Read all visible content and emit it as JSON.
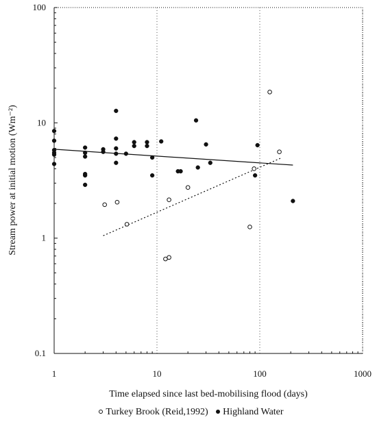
{
  "chart_data": {
    "type": "scatter",
    "x_scale": "log",
    "y_scale": "log",
    "xlim": [
      1,
      1000
    ],
    "ylim": [
      0.1,
      100
    ],
    "xlabel": "Time elapsed since last bed-mobilising flood (days)",
    "ylabel": "Stream power at initial motion (Wm⁻²)",
    "x_ticks": [
      {
        "value": 1,
        "label": "1"
      },
      {
        "value": 10,
        "label": "10"
      },
      {
        "value": 100,
        "label": "100"
      },
      {
        "value": 1000,
        "label": "1000"
      }
    ],
    "y_ticks": [
      {
        "value": 0.1,
        "label": "0.1"
      },
      {
        "value": 1,
        "label": "1"
      },
      {
        "value": 10,
        "label": "10"
      },
      {
        "value": 100,
        "label": "100"
      }
    ],
    "grid": "dotted vertical lines at x = 10, 100, 1000",
    "legend_position": "bottom",
    "series": [
      {
        "name": "Turkey Brook (Reid,1992)",
        "marker": "open-circle",
        "trend": "dotted",
        "trend_x": [
          3,
          165
        ],
        "trend_y": [
          1.05,
          5.0
        ],
        "points": [
          [
            3.1,
            1.95
          ],
          [
            4.1,
            2.05
          ],
          [
            5.1,
            1.32
          ],
          [
            12.1,
            0.66
          ],
          [
            13.1,
            0.68
          ],
          [
            13.1,
            2.15
          ],
          [
            20,
            2.75
          ],
          [
            80,
            1.25
          ],
          [
            88,
            4.0
          ],
          [
            125,
            18.5
          ],
          [
            155,
            5.6
          ]
        ]
      },
      {
        "name": "Highland Water",
        "marker": "filled-circle",
        "trend": "solid",
        "trend_x": [
          1,
          210
        ],
        "trend_y": [
          5.9,
          4.3
        ],
        "points": [
          [
            1,
            8.5
          ],
          [
            1,
            7.0
          ],
          [
            1,
            5.8
          ],
          [
            1,
            5.5
          ],
          [
            1,
            5.3
          ],
          [
            1,
            4.4
          ],
          [
            2,
            6.1
          ],
          [
            2,
            5.5
          ],
          [
            2,
            5.1
          ],
          [
            2,
            3.6
          ],
          [
            2,
            3.5
          ],
          [
            2,
            2.9
          ],
          [
            3,
            5.9
          ],
          [
            3,
            5.6
          ],
          [
            4,
            12.7
          ],
          [
            4,
            7.3
          ],
          [
            4,
            6.0
          ],
          [
            4,
            5.4
          ],
          [
            4,
            4.5
          ],
          [
            5,
            5.4
          ],
          [
            6,
            6.8
          ],
          [
            6,
            6.3
          ],
          [
            8,
            6.8
          ],
          [
            8,
            6.3
          ],
          [
            9,
            3.5
          ],
          [
            9,
            5.0
          ],
          [
            11,
            6.9
          ],
          [
            16,
            3.8
          ],
          [
            17,
            3.8
          ],
          [
            24,
            10.5
          ],
          [
            25,
            4.1
          ],
          [
            30,
            6.5
          ],
          [
            33,
            4.5
          ],
          [
            90,
            3.5
          ],
          [
            95,
            6.4
          ],
          [
            210,
            2.1
          ]
        ]
      }
    ]
  }
}
